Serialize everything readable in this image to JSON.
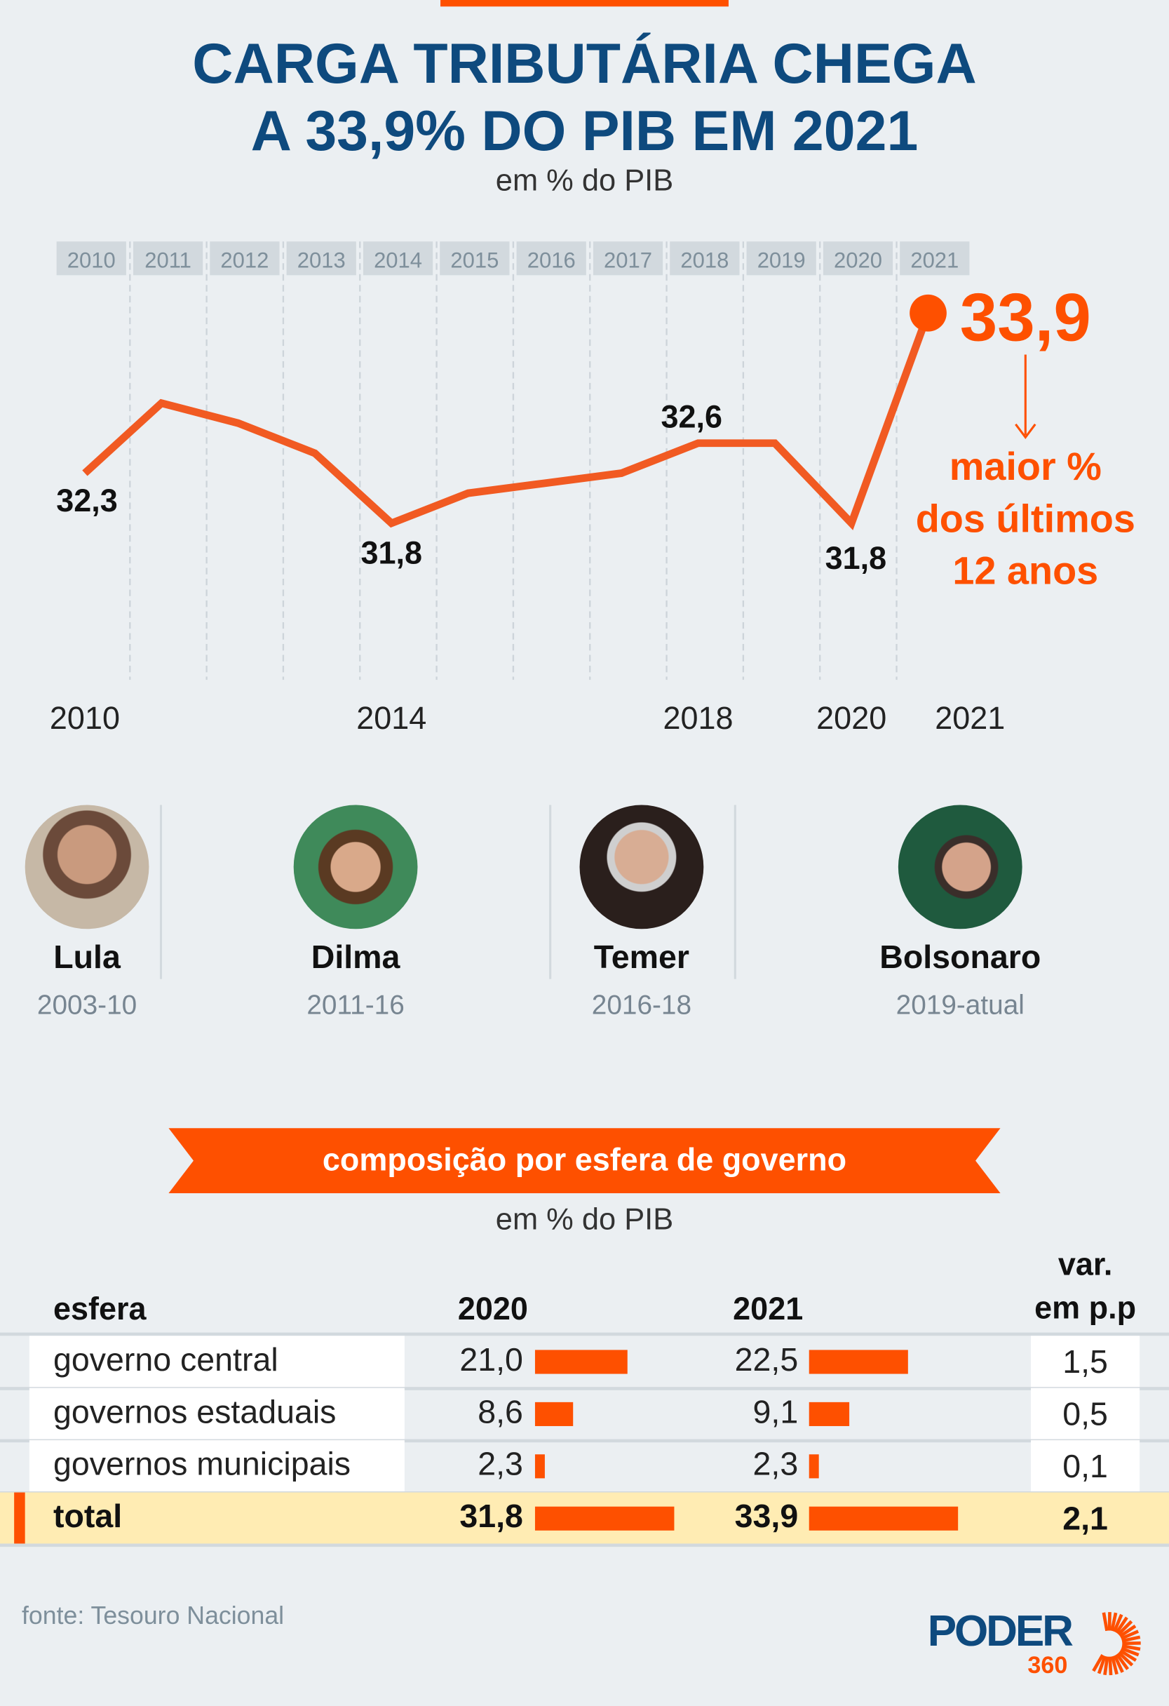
{
  "header": {
    "title_line1": "CARGA TRIBUTÁRIA CHEGA",
    "title_line2": "A 33,9% DO PIB EM 2021",
    "subtitle": "em % do PIB"
  },
  "chart_data": {
    "type": "line",
    "title": "CARGA TRIBUTÁRIA CHEGA A 33,9% DO PIB EM 2021",
    "subtitle": "em % do PIB",
    "x": [
      2010,
      2011,
      2012,
      2013,
      2014,
      2015,
      2016,
      2017,
      2018,
      2019,
      2020,
      2021
    ],
    "top_tick_labels": [
      "2010",
      "2011",
      "2012",
      "2013",
      "2014",
      "2015",
      "2016",
      "2017",
      "2018",
      "2019",
      "2020",
      "2021"
    ],
    "bottom_tick_labels": [
      "2010",
      "2014",
      "2018",
      "2020",
      "2021"
    ],
    "values": [
      32.3,
      33.0,
      32.8,
      32.5,
      31.8,
      32.1,
      32.2,
      32.3,
      32.6,
      32.6,
      31.8,
      33.9
    ],
    "data_labels": [
      {
        "year": 2010,
        "text": "32,3"
      },
      {
        "year": 2014,
        "text": "31,8"
      },
      {
        "year": 2018,
        "text": "32,6"
      },
      {
        "year": 2020,
        "text": "31,8"
      },
      {
        "year": 2021,
        "text": "33,9"
      }
    ],
    "annotation": [
      "maior %",
      "dos últimos",
      "12 anos"
    ],
    "grid": "vertical dashed",
    "color": "#f15a22",
    "highlight_color": "#fe5000"
  },
  "presidents": [
    {
      "name": "Lula",
      "years": "2003-10"
    },
    {
      "name": "Dilma",
      "years": "2011-16"
    },
    {
      "name": "Temer",
      "years": "2016-18"
    },
    {
      "name": "Bolsonaro",
      "years": "2019-atual"
    }
  ],
  "table": {
    "banner": "composição por esfera de governo",
    "subtitle": "em % do PIB",
    "headers": {
      "esfera": "esfera",
      "y2020": "2020",
      "y2021": "2021",
      "var1": "var.",
      "var2": "em p.p"
    },
    "rows": [
      {
        "name": "governo central",
        "v2020": "21,0",
        "v2021": "22,5",
        "var": "1,5",
        "n2020": 21.0,
        "n2021": 22.5
      },
      {
        "name": "governos estaduais",
        "v2020": "8,6",
        "v2021": "9,1",
        "var": "0,5",
        "n2020": 8.6,
        "n2021": 9.1
      },
      {
        "name": "governos municipais",
        "v2020": "2,3",
        "v2021": "2,3",
        "var": "0,1",
        "n2020": 2.3,
        "n2021": 2.3
      },
      {
        "name": "total",
        "v2020": "31,8",
        "v2021": "33,9",
        "var": "2,1",
        "n2020": 31.8,
        "n2021": 33.9
      }
    ],
    "bar_color": "#fe5000"
  },
  "footer": {
    "source": "fonte: Tesouro Nacional",
    "logo_word": "PODER",
    "logo_num": "360"
  }
}
